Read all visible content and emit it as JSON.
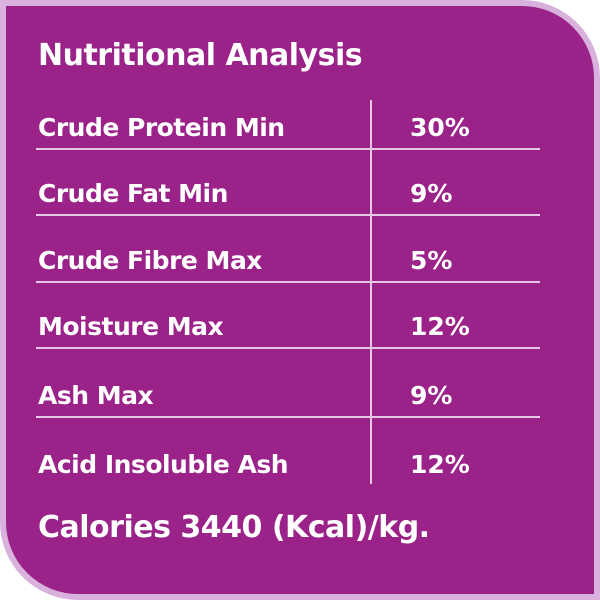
{
  "header": {
    "title": "Nutritional Analysis"
  },
  "table": {
    "rows": [
      [
        "Crude Protein Min",
        "30%"
      ],
      [
        "Crude Fat Min",
        "9%"
      ],
      [
        "Crude Fibre Max",
        "5%"
      ],
      [
        "Moisture Max",
        "12%"
      ],
      [
        "Ash Max",
        "9%"
      ],
      [
        "Acid Insoluble Ash",
        "12%"
      ]
    ]
  },
  "footer": {
    "text": "Calories 3440 (Kcal)/kg."
  }
}
